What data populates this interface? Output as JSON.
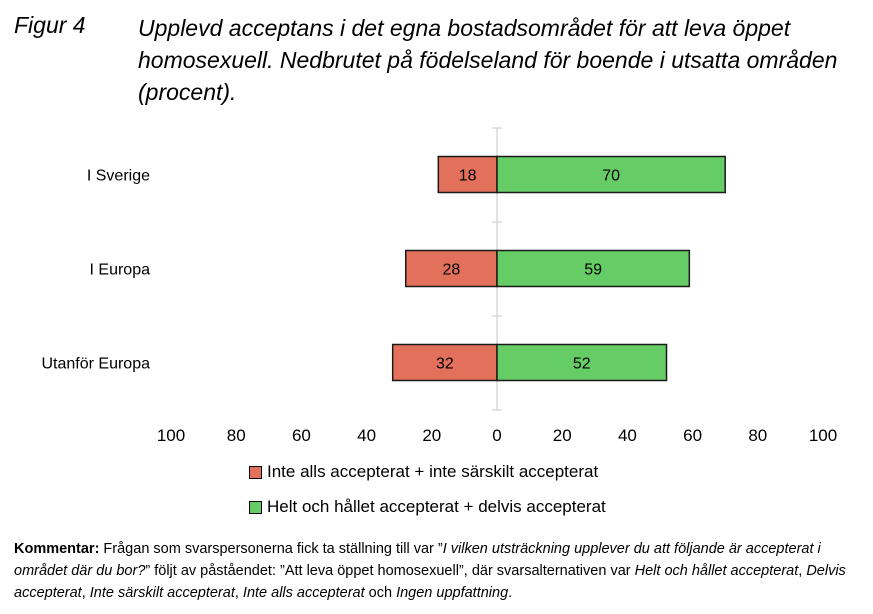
{
  "figure": {
    "label": "Figur 4",
    "title": "Upplevd acceptans i det egna bostadsområdet för att leva öppet homosexuell. Nedbrutet på födelseland för boende i utsatta områden (procent)."
  },
  "chart_data": {
    "type": "bar",
    "orientation": "horizontal-diverging",
    "categories": [
      "I Sverige",
      "I Europa",
      "Utanför Europa"
    ],
    "series": [
      {
        "name": "Inte alls accepterat + inte särskilt accepterat",
        "values": [
          18,
          28,
          32
        ],
        "color": "#e2705a",
        "direction": "left"
      },
      {
        "name": "Helt och hållet accepterat + delvis accepterat",
        "values": [
          70,
          59,
          52
        ],
        "color": "#66cc66",
        "direction": "right"
      }
    ],
    "xlim": [
      -100,
      100
    ],
    "tick_labels": [
      "100",
      "80",
      "60",
      "40",
      "20",
      "0",
      "20",
      "40",
      "60",
      "80",
      "100"
    ],
    "legend_position": "bottom"
  },
  "comment": {
    "label": "Kommentar:",
    "t1": " Frågan som svarspersonerna fick ta ställning till var ”",
    "i1": "I vilken utsträckning upplever du att följande är accepterat i området där du bor?",
    "t2": "” följt av påståendet: ”Att leva öppet homosexuell”, där svarsalternativen var ",
    "i2": "Helt och hållet accepterat",
    "t3": ", ",
    "i3": "Delvis accepterat",
    "t4": ", ",
    "i4": "Inte särskilt accepterat",
    "t5": ", ",
    "i5": "Inte alls accepterat",
    "t6": " och ",
    "i6": "Ingen uppfattning",
    "t7": "."
  }
}
